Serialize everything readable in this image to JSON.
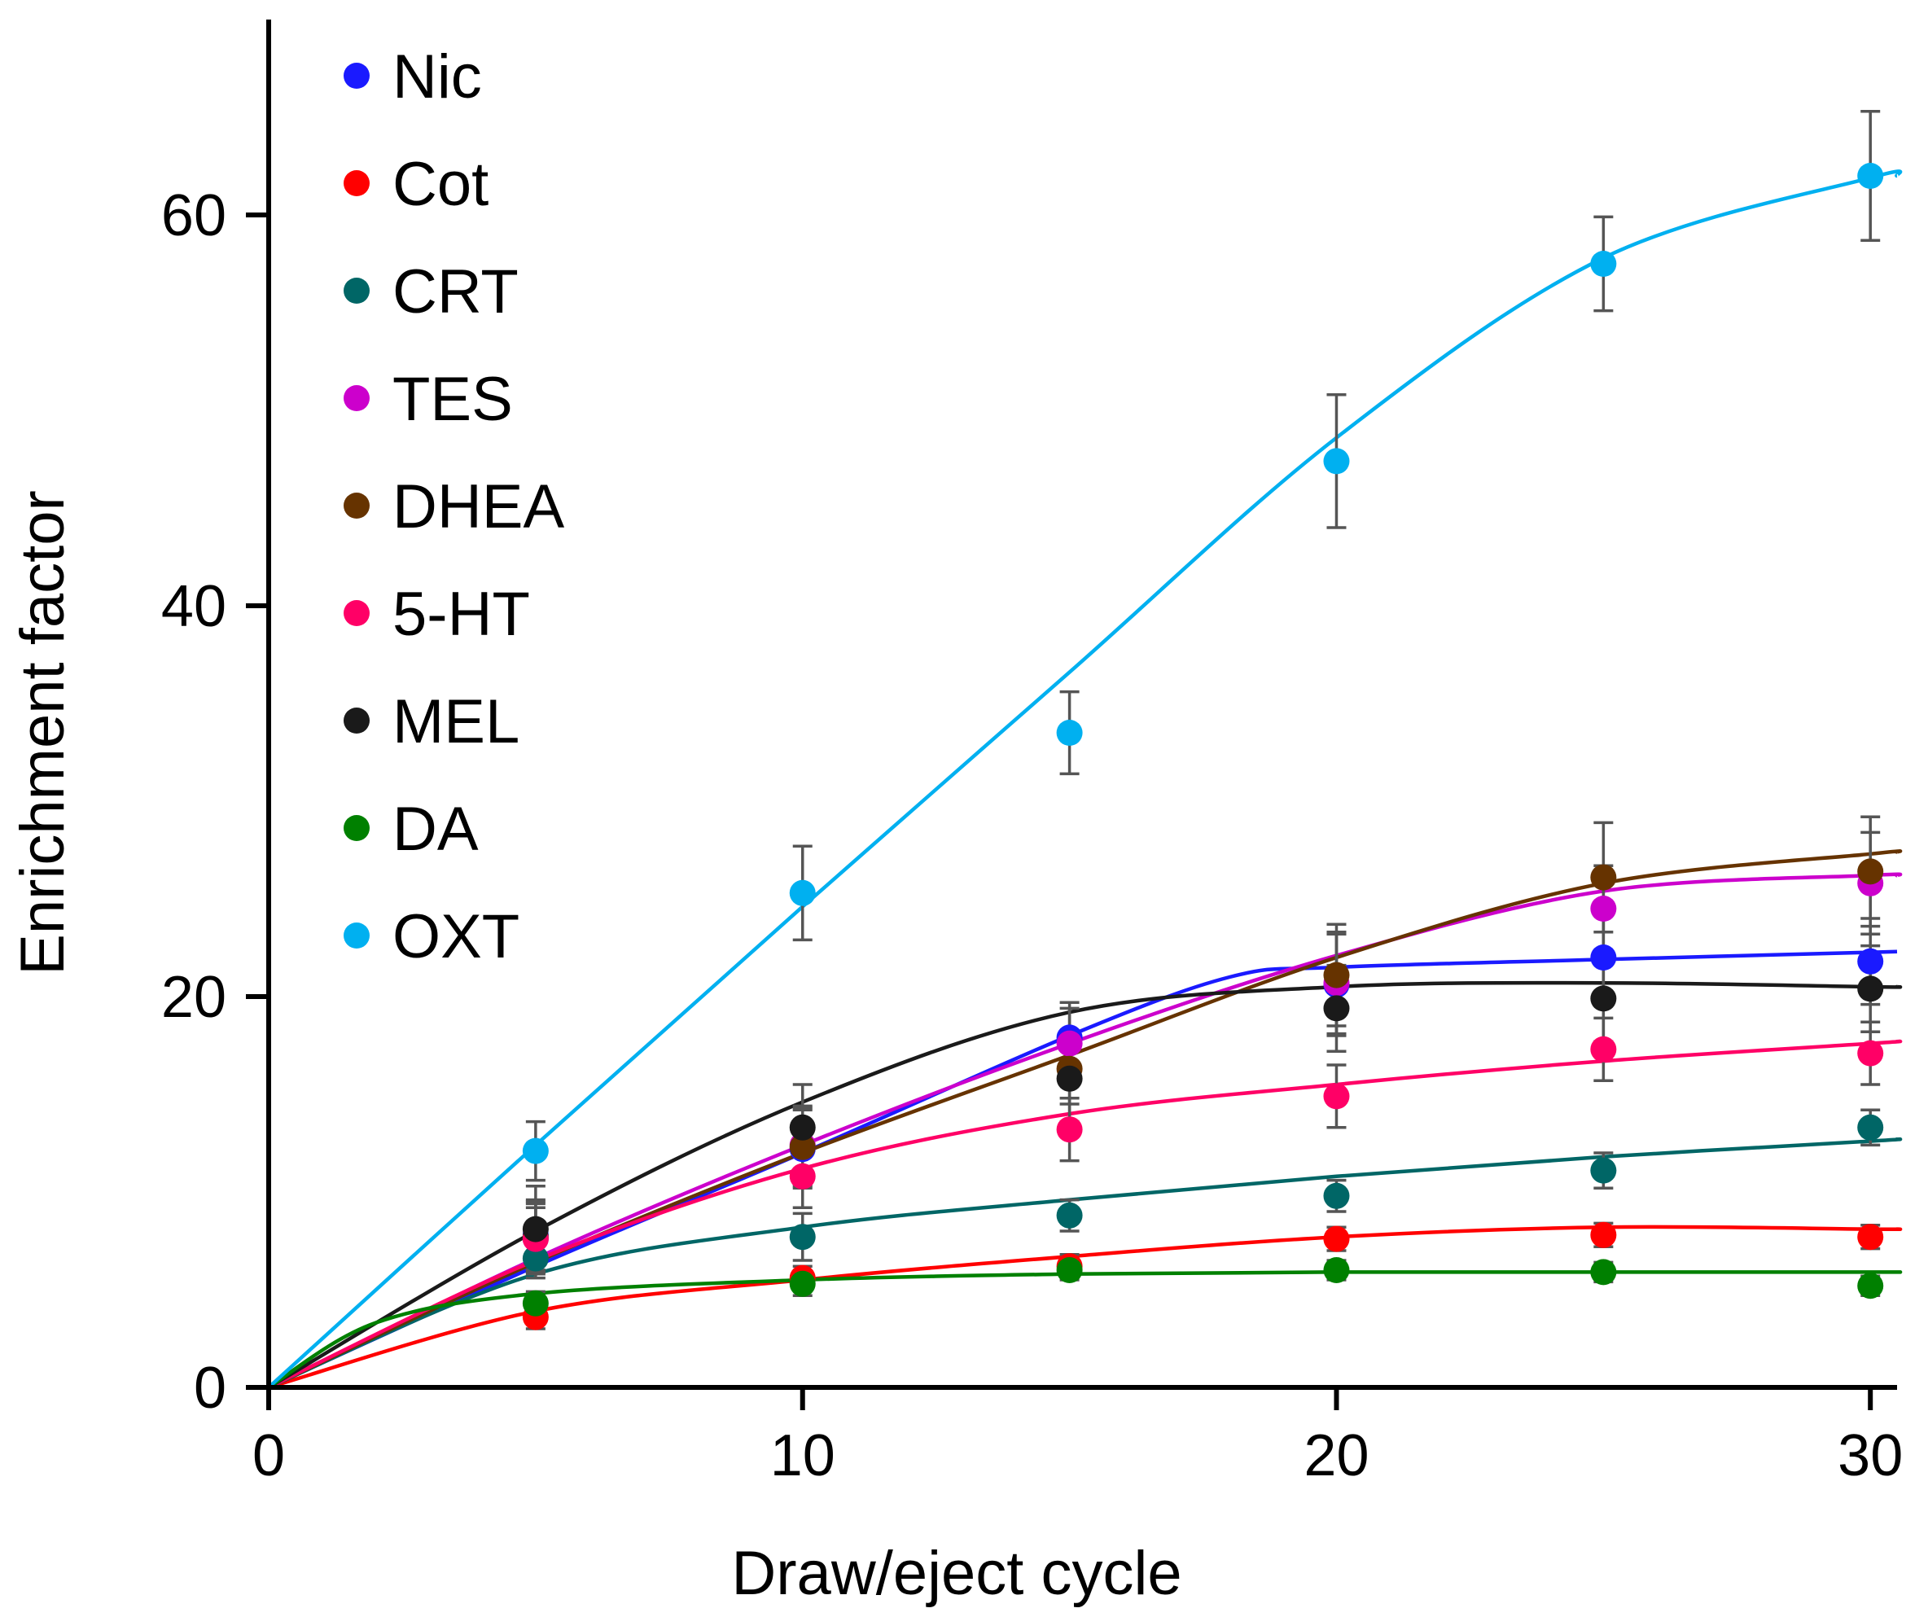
{
  "chart_data": {
    "type": "scatter",
    "title": "",
    "xlabel": "Draw/eject cycle",
    "ylabel": "Enrichment factor",
    "xlim": [
      0,
      30.5
    ],
    "ylim": [
      0,
      70
    ],
    "xticks": [
      0,
      10,
      20,
      30
    ],
    "yticks": [
      0,
      20,
      40,
      60
    ],
    "xtick_labels": [
      "0",
      "10",
      "20",
      "30"
    ],
    "ytick_labels": [
      "0",
      "20",
      "40",
      "60"
    ],
    "grid": false,
    "legend_position": "top-left",
    "x": [
      5,
      10,
      15,
      20,
      25,
      30
    ],
    "series": [
      {
        "name": "Nic",
        "color": "#1a1aff",
        "values": [
          7.8,
          12.2,
          17.9,
          20.6,
          22.0,
          21.8
        ],
        "errors": [
          1.8,
          2.0,
          1.8,
          2.6,
          2.2,
          2.2
        ],
        "fit_x": [
          0,
          5,
          10,
          15,
          18,
          20,
          25,
          30.5
        ],
        "fit_y": [
          0,
          6.2,
          12.0,
          18.0,
          21.0,
          21.5,
          21.9,
          22.3
        ]
      },
      {
        "name": "Cot",
        "color": "#ff0000",
        "values": [
          3.6,
          5.6,
          6.2,
          7.6,
          7.8,
          7.7
        ],
        "errors": [
          0.6,
          0.6,
          0.6,
          0.6,
          0.6,
          0.6
        ],
        "fit_x": [
          0,
          5,
          10,
          15,
          20,
          25,
          30,
          30.5
        ],
        "fit_y": [
          0,
          3.9,
          5.5,
          6.7,
          7.7,
          8.2,
          8.1,
          8.1
        ]
      },
      {
        "name": "CRT",
        "color": "#006666",
        "values": [
          6.6,
          7.7,
          8.8,
          9.8,
          11.1,
          13.3
        ],
        "errors": [
          1.0,
          1.2,
          0.8,
          0.8,
          0.9,
          0.9
        ],
        "fit_x": [
          0,
          5,
          10,
          15,
          20,
          25,
          30,
          30.5
        ],
        "fit_y": [
          0,
          5.8,
          8.2,
          9.6,
          10.8,
          11.8,
          12.6,
          12.7
        ]
      },
      {
        "name": "TES",
        "color": "#cc00cc",
        "values": [
          7.6,
          12.4,
          17.6,
          20.7,
          24.5,
          25.8
        ],
        "errors": [
          1.8,
          2.0,
          1.8,
          2.6,
          2.2,
          2.6
        ],
        "fit_x": [
          0,
          5,
          10,
          15,
          20,
          25,
          30,
          30.5
        ],
        "fit_y": [
          0,
          6.6,
          12.4,
          17.6,
          22.1,
          25.4,
          26.2,
          26.2
        ]
      },
      {
        "name": "DHEA",
        "color": "#663300",
        "values": [
          7.7,
          12.3,
          16.3,
          21.1,
          26.1,
          26.4
        ],
        "errors": [
          1.8,
          2.0,
          1.8,
          2.6,
          2.8,
          2.8
        ],
        "fit_x": [
          0,
          5,
          10,
          15,
          20,
          25,
          30,
          30.5
        ],
        "fit_y": [
          0,
          6.4,
          12.0,
          17.0,
          22.0,
          25.8,
          27.3,
          27.4
        ]
      },
      {
        "name": "5-HT",
        "color": "#ff0066",
        "values": [
          7.6,
          10.8,
          13.2,
          14.9,
          17.3,
          17.1
        ],
        "errors": [
          1.6,
          1.6,
          1.6,
          1.6,
          1.6,
          1.6
        ],
        "fit_x": [
          0,
          5,
          10,
          15,
          20,
          25,
          30,
          30.5
        ],
        "fit_y": [
          0,
          6.5,
          11.2,
          14.0,
          15.5,
          16.7,
          17.6,
          17.7
        ]
      },
      {
        "name": "MEL",
        "color": "#1a1a1a",
        "values": [
          8.1,
          13.3,
          15.8,
          19.4,
          19.9,
          20.4
        ],
        "errors": [
          2.2,
          2.2,
          2.2,
          2.2,
          2.2,
          2.2
        ],
        "fit_x": [
          0,
          5,
          10,
          15,
          20,
          25,
          30,
          30.5
        ],
        "fit_y": [
          0,
          8.0,
          14.6,
          19.2,
          20.5,
          20.7,
          20.5,
          20.5
        ]
      },
      {
        "name": "DA",
        "color": "#008000",
        "values": [
          4.3,
          5.3,
          6.0,
          6.0,
          5.9,
          5.2
        ],
        "errors": [
          0.6,
          0.6,
          0.5,
          0.5,
          0.5,
          0.5
        ],
        "fit_x": [
          0,
          2,
          5,
          10,
          15,
          20,
          25,
          30,
          30.5
        ],
        "fit_y": [
          0,
          3.3,
          4.8,
          5.5,
          5.8,
          5.9,
          5.9,
          5.9,
          5.9
        ]
      },
      {
        "name": "OXT",
        "color": "#00b0f0",
        "values": [
          12.1,
          25.3,
          33.5,
          47.4,
          57.5,
          62.0
        ],
        "errors": [
          1.5,
          2.4,
          2.1,
          3.4,
          2.4,
          3.3
        ],
        "fit_x": [
          0,
          5,
          10,
          15,
          20,
          25,
          30,
          30.5
        ],
        "fit_y": [
          0,
          12.4,
          24.6,
          36.6,
          48.6,
          57.8,
          61.9,
          62.0
        ]
      }
    ]
  }
}
